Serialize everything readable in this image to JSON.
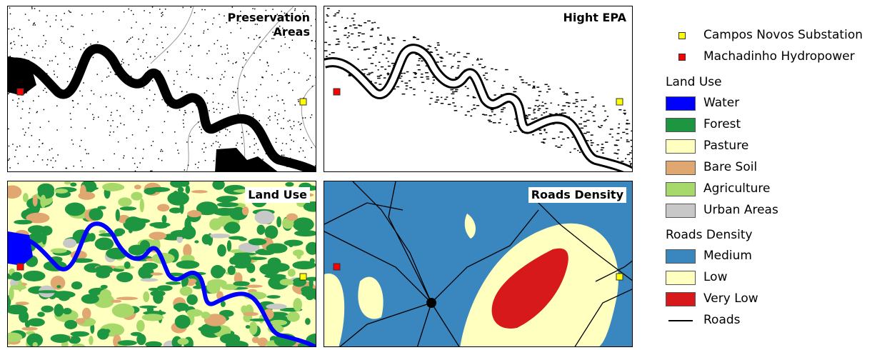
{
  "panels": [
    {
      "title": "Preservation Areas"
    },
    {
      "title": "Hight EPA"
    },
    {
      "title": "Land Use"
    },
    {
      "title": "Roads Density"
    }
  ],
  "legend": {
    "points": [
      {
        "label": "Campos Novos Substation",
        "color": "#ffff00"
      },
      {
        "label": "Machadinho Hydropower",
        "color": "#ff0000"
      }
    ],
    "groups": [
      {
        "title": "Land Use",
        "items": [
          {
            "label": "Water",
            "color": "#0000ff"
          },
          {
            "label": "Forest",
            "color": "#1e9641"
          },
          {
            "label": "Pasture",
            "color": "#ffffc0"
          },
          {
            "label": "Bare Soil",
            "color": "#e0a870"
          },
          {
            "label": "Agriculture",
            "color": "#a6d96a"
          },
          {
            "label": "Urban Areas",
            "color": "#c8c8c8"
          }
        ]
      },
      {
        "title": "Roads Density",
        "items": [
          {
            "label": "Medium",
            "color": "#3a86bf"
          },
          {
            "label": "Low",
            "color": "#ffffc0"
          },
          {
            "label": "Very Low",
            "color": "#d7191c"
          },
          {
            "label": "Roads",
            "color": "#000000",
            "line": true
          }
        ]
      }
    ]
  }
}
